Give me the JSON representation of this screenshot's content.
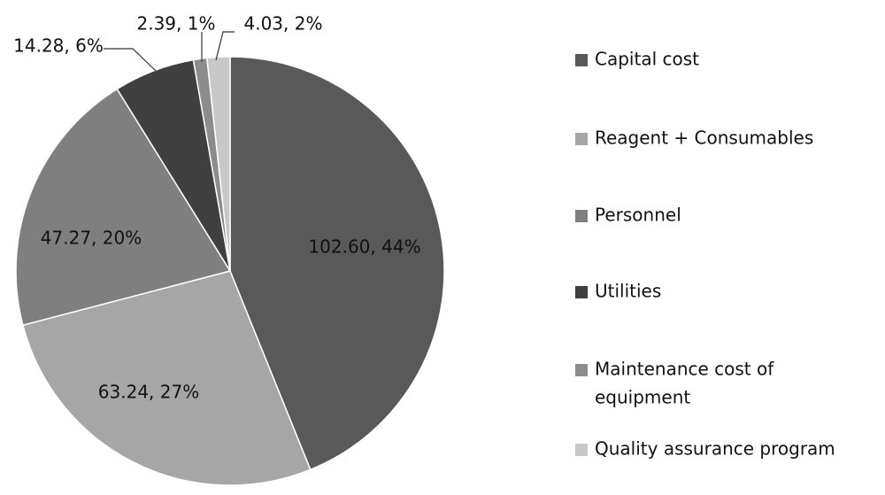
{
  "chart_data": {
    "type": "pie",
    "title": "",
    "legend_position": "right",
    "slices": [
      {
        "category": "Capital cost",
        "value": 102.6,
        "percent_label": "102.60, 44%",
        "color": "#595959"
      },
      {
        "category": "Reagent + Consumables",
        "value": 63.24,
        "percent_label": "63.24, 27%",
        "color": "#a6a6a6"
      },
      {
        "category": "Personnel",
        "value": 47.27,
        "percent_label": "47.27, 20%",
        "color": "#7f7f7f"
      },
      {
        "category": "Utilities",
        "value": 14.28,
        "percent_label": "14.28, 6%",
        "color": "#404040"
      },
      {
        "category": "Maintenance cost of equipment",
        "value": 2.39,
        "percent_label": "2.39, 1%",
        "color": "#8c8c8c"
      },
      {
        "category": "Quality assurance program",
        "value": 4.03,
        "percent_label": "4.03, 2%",
        "color": "#c8c8c8"
      }
    ],
    "legend": [
      {
        "lines": [
          "Capital cost"
        ],
        "color": "#595959"
      },
      {
        "lines": [
          "Reagent + Consumables"
        ],
        "color": "#a6a6a6"
      },
      {
        "lines": [
          "Personnel"
        ],
        "color": "#7f7f7f"
      },
      {
        "lines": [
          "Utilities"
        ],
        "color": "#404040"
      },
      {
        "lines": [
          "Maintenance cost of",
          "equipment"
        ],
        "color": "#8c8c8c"
      },
      {
        "lines": [
          "Quality assurance program"
        ],
        "color": "#c8c8c8"
      }
    ]
  }
}
